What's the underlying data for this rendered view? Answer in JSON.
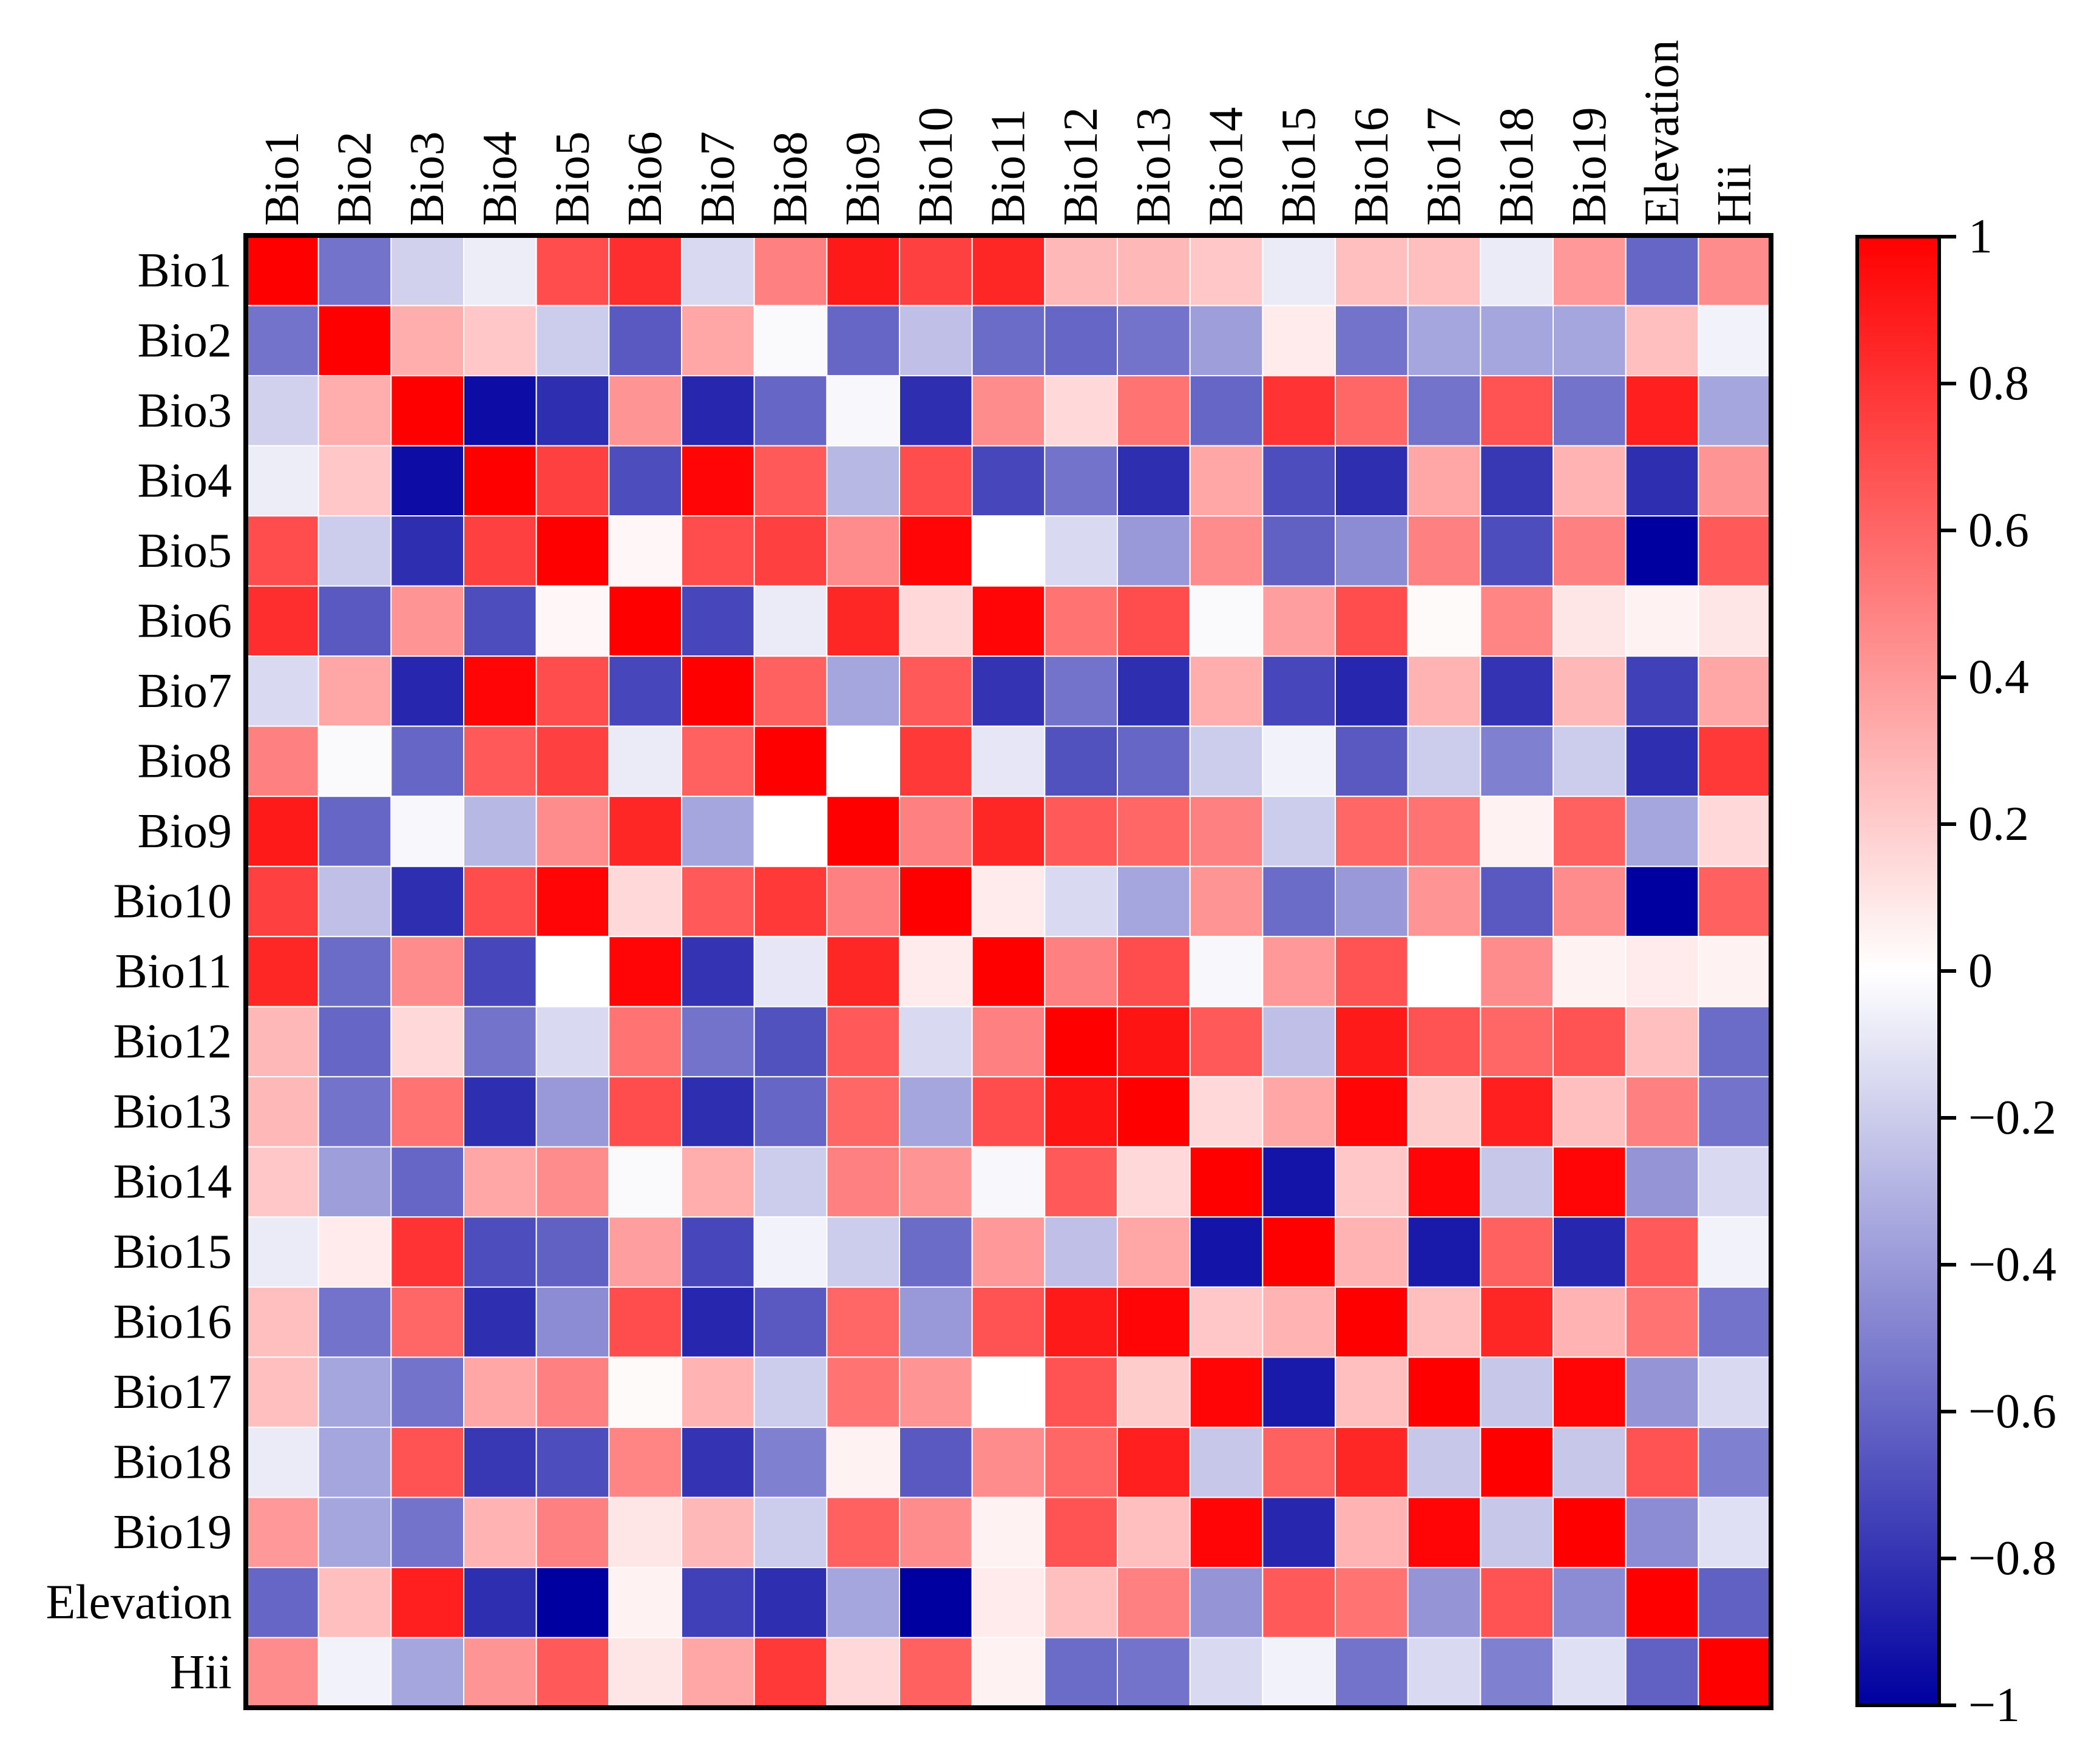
{
  "chart_data": {
    "type": "heatmap",
    "title": "",
    "xlabel": "",
    "ylabel": "",
    "labels": [
      "Bio1",
      "Bio2",
      "Bio3",
      "Bio4",
      "Bio5",
      "Bio6",
      "Bio7",
      "Bio8",
      "Bio9",
      "Bio10",
      "Bio11",
      "Bio12",
      "Bio13",
      "Bio14",
      "Bio15",
      "Bio16",
      "Bio17",
      "Bio18",
      "Bio19",
      "Elevation",
      "Hii"
    ],
    "matrix": [
      [
        1.0,
        -0.55,
        -0.18,
        -0.07,
        0.7,
        0.82,
        -0.15,
        0.5,
        0.9,
        0.75,
        0.85,
        0.28,
        0.28,
        0.22,
        -0.08,
        0.25,
        0.25,
        -0.08,
        0.4,
        -0.6,
        0.45
      ],
      [
        -0.55,
        1.0,
        0.32,
        0.22,
        -0.2,
        -0.65,
        0.35,
        -0.02,
        -0.6,
        -0.25,
        -0.58,
        -0.6,
        -0.55,
        -0.38,
        0.08,
        -0.55,
        -0.35,
        -0.35,
        -0.35,
        0.25,
        -0.05
      ],
      [
        -0.18,
        0.32,
        1.0,
        -0.95,
        -0.82,
        0.42,
        -0.85,
        -0.6,
        -0.03,
        -0.82,
        0.45,
        0.15,
        0.55,
        -0.6,
        0.8,
        0.6,
        -0.55,
        0.68,
        -0.55,
        0.88,
        -0.35
      ],
      [
        -0.07,
        0.22,
        -0.95,
        1.0,
        0.75,
        -0.7,
        0.98,
        0.65,
        -0.28,
        0.7,
        -0.72,
        -0.55,
        -0.82,
        0.35,
        -0.7,
        -0.82,
        0.35,
        -0.78,
        0.3,
        -0.82,
        0.42
      ],
      [
        0.7,
        -0.2,
        -0.82,
        0.75,
        1.0,
        0.03,
        0.7,
        0.75,
        0.45,
        0.98,
        0.0,
        -0.15,
        -0.4,
        0.45,
        -0.62,
        -0.45,
        0.5,
        -0.7,
        0.5,
        -1.0,
        0.65
      ],
      [
        0.82,
        -0.65,
        0.42,
        -0.7,
        0.03,
        1.0,
        -0.72,
        -0.08,
        0.85,
        0.15,
        0.98,
        0.55,
        0.7,
        -0.02,
        0.38,
        0.7,
        0.02,
        0.48,
        0.1,
        0.05,
        0.1
      ],
      [
        -0.15,
        0.35,
        -0.85,
        0.98,
        0.7,
        -0.72,
        1.0,
        0.62,
        -0.35,
        0.65,
        -0.8,
        -0.55,
        -0.82,
        0.32,
        -0.72,
        -0.85,
        0.3,
        -0.8,
        0.28,
        -0.75,
        0.35
      ],
      [
        0.5,
        -0.02,
        -0.6,
        0.65,
        0.75,
        -0.08,
        0.62,
        1.0,
        0.0,
        0.78,
        -0.1,
        -0.68,
        -0.6,
        -0.2,
        -0.05,
        -0.65,
        -0.2,
        -0.5,
        -0.2,
        -0.82,
        0.78
      ],
      [
        0.9,
        -0.6,
        -0.03,
        -0.28,
        0.45,
        0.85,
        -0.35,
        0.0,
        1.0,
        0.5,
        0.85,
        0.65,
        0.6,
        0.5,
        -0.2,
        0.6,
        0.55,
        0.05,
        0.62,
        -0.35,
        0.15
      ],
      [
        0.75,
        -0.25,
        -0.82,
        0.7,
        0.98,
        0.15,
        0.65,
        0.78,
        0.5,
        1.0,
        0.08,
        -0.15,
        -0.35,
        0.42,
        -0.58,
        -0.4,
        0.42,
        -0.65,
        0.45,
        -1.0,
        0.62
      ],
      [
        0.85,
        -0.58,
        0.45,
        -0.72,
        0.0,
        0.98,
        -0.8,
        -0.1,
        0.85,
        0.08,
        1.0,
        0.5,
        0.7,
        -0.03,
        0.4,
        0.68,
        0.0,
        0.45,
        0.05,
        0.08,
        0.05
      ],
      [
        0.28,
        -0.6,
        0.15,
        -0.55,
        -0.15,
        0.55,
        -0.55,
        -0.68,
        0.65,
        -0.15,
        0.5,
        1.0,
        0.92,
        0.65,
        -0.25,
        0.9,
        0.68,
        0.6,
        0.68,
        0.25,
        -0.58
      ],
      [
        0.28,
        -0.55,
        0.55,
        -0.82,
        -0.4,
        0.7,
        -0.82,
        -0.6,
        0.6,
        -0.35,
        0.7,
        0.92,
        1.0,
        0.15,
        0.35,
        0.98,
        0.2,
        0.88,
        0.25,
        0.5,
        -0.55
      ],
      [
        0.22,
        -0.38,
        -0.6,
        0.35,
        0.45,
        -0.02,
        0.32,
        -0.2,
        0.5,
        0.42,
        -0.03,
        0.65,
        0.15,
        1.0,
        -0.92,
        0.22,
        0.98,
        -0.22,
        0.98,
        -0.42,
        -0.15
      ],
      [
        -0.08,
        0.08,
        0.8,
        -0.7,
        -0.62,
        0.38,
        -0.72,
        -0.05,
        -0.2,
        -0.58,
        0.4,
        -0.25,
        0.35,
        -0.92,
        1.0,
        0.3,
        -0.9,
        0.62,
        -0.85,
        0.65,
        -0.05
      ],
      [
        0.25,
        -0.55,
        0.6,
        -0.82,
        -0.45,
        0.7,
        -0.85,
        -0.65,
        0.6,
        -0.4,
        0.68,
        0.9,
        0.98,
        0.22,
        0.3,
        1.0,
        0.25,
        0.85,
        0.3,
        0.55,
        -0.55
      ],
      [
        0.25,
        -0.35,
        -0.55,
        0.35,
        0.5,
        0.02,
        0.3,
        -0.2,
        0.55,
        0.42,
        0.0,
        0.68,
        0.2,
        0.98,
        -0.9,
        0.25,
        1.0,
        -0.22,
        0.98,
        -0.42,
        -0.15
      ],
      [
        -0.08,
        -0.35,
        0.68,
        -0.78,
        -0.7,
        0.48,
        -0.8,
        -0.5,
        0.05,
        -0.65,
        0.45,
        0.6,
        0.88,
        -0.22,
        0.62,
        0.85,
        -0.22,
        1.0,
        -0.22,
        0.68,
        -0.5
      ],
      [
        0.4,
        -0.35,
        -0.55,
        0.3,
        0.5,
        0.1,
        0.28,
        -0.2,
        0.62,
        0.45,
        0.05,
        0.68,
        0.25,
        0.98,
        -0.85,
        0.3,
        0.98,
        -0.22,
        1.0,
        -0.45,
        -0.12
      ],
      [
        -0.6,
        0.25,
        0.88,
        -0.82,
        -1.0,
        0.05,
        -0.75,
        -0.82,
        -0.35,
        -1.0,
        0.08,
        0.25,
        0.5,
        -0.42,
        0.65,
        0.55,
        -0.42,
        0.68,
        -0.45,
        1.0,
        -0.62
      ],
      [
        0.45,
        -0.05,
        -0.35,
        0.42,
        0.65,
        0.1,
        0.35,
        0.78,
        0.15,
        0.62,
        0.05,
        -0.58,
        -0.55,
        -0.15,
        -0.05,
        -0.55,
        -0.15,
        -0.5,
        -0.12,
        -0.62,
        1.0
      ]
    ],
    "colorbar": {
      "range": [
        -1,
        1
      ],
      "ticks": [
        1,
        0.8,
        0.6,
        0.4,
        0.2,
        0,
        -0.2,
        -0.4,
        -0.6,
        -0.8,
        -1
      ],
      "tick_labels": [
        "1",
        "0.8",
        "0.6",
        "0.4",
        "0.2",
        "0",
        "−0.2",
        "−0.4",
        "−0.6",
        "−0.8",
        "−1"
      ],
      "colors": {
        "low": "#0000a0",
        "mid": "#ffffff",
        "high": "#ff0000"
      }
    },
    "grid": true,
    "legend": "right"
  }
}
